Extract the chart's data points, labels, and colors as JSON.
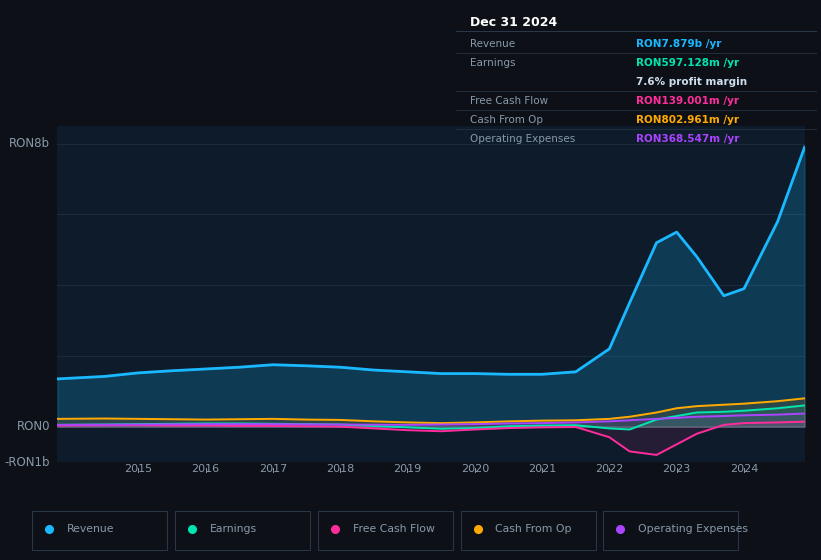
{
  "background_color": "#0d1117",
  "plot_bg_color": "#0d1b2a",
  "ylabel_top": "RON8b",
  "ylabel_bottom": "-RON1b",
  "ylabel_zero": "RON0",
  "x_years": [
    2013.8,
    2014.5,
    2015.0,
    2015.5,
    2016.0,
    2016.5,
    2017.0,
    2017.5,
    2018.0,
    2018.5,
    2019.0,
    2019.5,
    2020.0,
    2020.5,
    2021.0,
    2021.5,
    2022.0,
    2022.3,
    2022.7,
    2023.0,
    2023.3,
    2023.7,
    2024.0,
    2024.5,
    2024.9
  ],
  "revenue": [
    1.35,
    1.42,
    1.52,
    1.58,
    1.63,
    1.68,
    1.75,
    1.72,
    1.68,
    1.6,
    1.55,
    1.5,
    1.5,
    1.48,
    1.48,
    1.55,
    2.2,
    3.5,
    5.2,
    5.5,
    4.8,
    3.7,
    3.9,
    5.8,
    7.9
  ],
  "earnings": [
    0.05,
    0.06,
    0.07,
    0.08,
    0.09,
    0.09,
    0.08,
    0.07,
    0.06,
    0.02,
    -0.02,
    -0.06,
    -0.04,
    0.01,
    0.03,
    0.04,
    -0.05,
    -0.08,
    0.2,
    0.3,
    0.4,
    0.42,
    0.45,
    0.52,
    0.6
  ],
  "free_cash_flow": [
    0.03,
    0.04,
    0.04,
    0.03,
    0.03,
    0.02,
    0.02,
    0.01,
    0.0,
    -0.05,
    -0.1,
    -0.13,
    -0.08,
    -0.04,
    -0.02,
    -0.01,
    -0.3,
    -0.7,
    -0.8,
    -0.5,
    -0.2,
    0.05,
    0.1,
    0.12,
    0.14
  ],
  "cash_from_op": [
    0.22,
    0.23,
    0.22,
    0.21,
    0.2,
    0.21,
    0.22,
    0.2,
    0.19,
    0.15,
    0.12,
    0.1,
    0.12,
    0.15,
    0.17,
    0.18,
    0.22,
    0.28,
    0.4,
    0.52,
    0.58,
    0.62,
    0.65,
    0.72,
    0.8
  ],
  "operating_exp": [
    0.05,
    0.055,
    0.06,
    0.065,
    0.07,
    0.07,
    0.07,
    0.065,
    0.06,
    0.055,
    0.05,
    0.06,
    0.07,
    0.09,
    0.1,
    0.12,
    0.15,
    0.18,
    0.22,
    0.25,
    0.28,
    0.3,
    0.32,
    0.34,
    0.37
  ],
  "revenue_color": "#1ab8ff",
  "earnings_color": "#00e5b0",
  "free_cash_flow_color": "#ff2d9b",
  "cash_from_op_color": "#ffaa00",
  "operating_exp_color": "#aa44ff",
  "grid_color": "#1a2d40",
  "text_color": "#8899aa",
  "info_box": {
    "bg": "#111820",
    "border": "#2a3a4a",
    "title": "Dec 31 2024",
    "rows": [
      {
        "label": "Revenue",
        "value": "RON7.879b /yr",
        "value_color": "#1ab8ff"
      },
      {
        "label": "Earnings",
        "value": "RON597.128m /yr",
        "value_color": "#00e5b0"
      },
      {
        "label": "",
        "value": "7.6% profit margin",
        "value_color": "#ccddee"
      },
      {
        "label": "Free Cash Flow",
        "value": "RON139.001m /yr",
        "value_color": "#ff2d9b"
      },
      {
        "label": "Cash From Op",
        "value": "RON802.961m /yr",
        "value_color": "#ffaa00"
      },
      {
        "label": "Operating Expenses",
        "value": "RON368.547m /yr",
        "value_color": "#aa44ff"
      }
    ]
  },
  "legend_items": [
    {
      "label": "Revenue",
      "color": "#1ab8ff"
    },
    {
      "label": "Earnings",
      "color": "#00e5b0"
    },
    {
      "label": "Free Cash Flow",
      "color": "#ff2d9b"
    },
    {
      "label": "Cash From Op",
      "color": "#ffaa00"
    },
    {
      "label": "Operating Expenses",
      "color": "#aa44ff"
    }
  ],
  "year_ticks": [
    2015,
    2016,
    2017,
    2018,
    2019,
    2020,
    2021,
    2022,
    2023,
    2024
  ]
}
